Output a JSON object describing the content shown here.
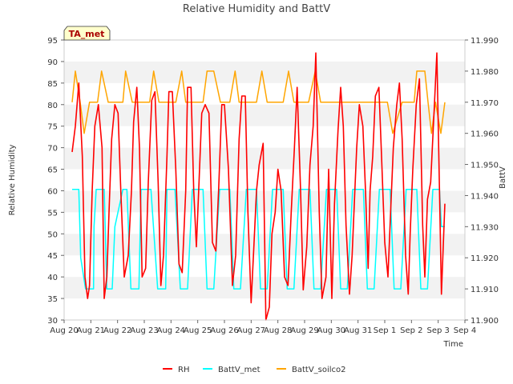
{
  "chart_data": {
    "type": "line",
    "title": "Relative Humidity and BattV",
    "xlabel": "Time",
    "ylabel_left": "Relative Humidity",
    "ylabel_right": "BattV",
    "station_label": "TA_met",
    "ylim_left": [
      30,
      95
    ],
    "ylim_right": [
      11.9,
      11.99
    ],
    "xlim": [
      0,
      15
    ],
    "yticks_left": [
      "30",
      "35",
      "40",
      "45",
      "50",
      "55",
      "60",
      "65",
      "70",
      "75",
      "80",
      "85",
      "90",
      "95"
    ],
    "yticks_right": [
      "11.900",
      "11.910",
      "11.920",
      "11.930",
      "11.940",
      "11.950",
      "11.960",
      "11.970",
      "11.980",
      "11.990"
    ],
    "xticks": [
      "Aug 20",
      "Aug 21",
      "Aug 22",
      "Aug 23",
      "Aug 24",
      "Aug 25",
      "Aug 26",
      "Aug 27",
      "Aug 28",
      "Aug 29",
      "Aug 30",
      "Aug 31",
      "Sep 1",
      "Sep 2",
      "Sep 3",
      "Sep 4"
    ],
    "grid": "horizontal bands",
    "legend_position": "bottom",
    "colors": {
      "RH": "#ff0000",
      "BattV_met": "#00ffff",
      "BattV_soilco2": "#ffa500",
      "band": "#f2f2f2"
    },
    "series": [
      {
        "name": "RH",
        "axis": "left",
        "x": [
          0.3,
          0.42,
          0.55,
          0.68,
          0.78,
          0.88,
          0.95,
          1.05,
          1.15,
          1.28,
          1.42,
          1.5,
          1.6,
          1.68,
          1.78,
          1.9,
          2.02,
          2.12,
          2.25,
          2.4,
          2.52,
          2.6,
          2.72,
          2.82,
          2.92,
          3.05,
          3.15,
          3.28,
          3.4,
          3.52,
          3.62,
          3.72,
          3.85,
          3.92,
          4.05,
          4.18,
          4.3,
          4.42,
          4.55,
          4.62,
          4.75,
          4.85,
          4.95,
          5.05,
          5.15,
          5.28,
          5.42,
          5.55,
          5.68,
          5.78,
          5.9,
          6.0,
          6.15,
          6.3,
          6.42,
          6.55,
          6.65,
          6.78,
          6.88,
          7.0,
          7.1,
          7.2,
          7.3,
          7.45,
          7.55,
          7.68,
          7.78,
          7.9,
          8.0,
          8.12,
          8.25,
          8.38,
          8.5,
          8.62,
          8.72,
          8.85,
          8.95,
          9.08,
          9.2,
          9.32,
          9.42,
          9.55,
          9.65,
          9.8,
          9.9,
          10.02,
          10.12,
          10.25,
          10.35,
          10.45,
          10.55,
          10.68,
          10.78,
          10.88,
          10.95,
          11.05,
          11.18,
          11.28,
          11.38,
          11.45,
          11.55,
          11.65,
          11.78,
          11.88,
          12.0,
          12.12,
          12.22,
          12.32,
          12.45,
          12.55,
          12.65,
          12.78,
          12.88,
          12.95,
          13.05,
          13.18,
          13.3,
          13.42,
          13.5,
          13.6,
          13.72,
          13.85,
          13.95,
          14.05,
          14.12,
          14.25
        ],
        "y": [
          69,
          75,
          85,
          68,
          40,
          35,
          38,
          60,
          75,
          80,
          70,
          35,
          40,
          55,
          72,
          80,
          78,
          60,
          40,
          45,
          60,
          76,
          84,
          70,
          40,
          42,
          62,
          81,
          83,
          62,
          38,
          45,
          68,
          83,
          83,
          65,
          43,
          41,
          60,
          84,
          84,
          60,
          47,
          62,
          78,
          80,
          78,
          48,
          46,
          60,
          80,
          80,
          65,
          38,
          45,
          72,
          82,
          82,
          55,
          34,
          47,
          60,
          66,
          71,
          30,
          33,
          50,
          55,
          65,
          60,
          40,
          38,
          55,
          70,
          84,
          60,
          37,
          47,
          66,
          75,
          92,
          55,
          35,
          40,
          65,
          35,
          57,
          74,
          84,
          75,
          52,
          36,
          45,
          60,
          70,
          80,
          75,
          60,
          42,
          60,
          68,
          82,
          84,
          68,
          48,
          40,
          55,
          70,
          80,
          85,
          72,
          45,
          36,
          50,
          65,
          80,
          86,
          52,
          40,
          58,
          62,
          79,
          92,
          60,
          36,
          57
        ]
      },
      {
        "name": "BattV_met",
        "axis": "right",
        "x": [
          0.3,
          0.55,
          0.62,
          0.8,
          0.88,
          1.1,
          1.12,
          1.2,
          1.5,
          1.6,
          1.8,
          1.9,
          2.2,
          2.35,
          2.5,
          2.6,
          2.8,
          2.88,
          3.25,
          3.5,
          3.6,
          3.8,
          3.85,
          4.15,
          4.35,
          4.5,
          4.62,
          4.8,
          4.88,
          5.2,
          5.35,
          5.5,
          5.6,
          5.82,
          5.9,
          6.2,
          6.35,
          6.5,
          6.6,
          6.82,
          6.9,
          7.2,
          7.35,
          7.5,
          7.6,
          7.8,
          7.88,
          8.2,
          8.35,
          8.5,
          8.6,
          8.8,
          8.88,
          9.2,
          9.35,
          9.5,
          9.6,
          9.82,
          9.9,
          10.2,
          10.35,
          10.5,
          10.6,
          10.8,
          10.88,
          11.2,
          11.35,
          11.5,
          11.6,
          11.8,
          11.88,
          12.2,
          12.35,
          12.5,
          12.6,
          12.8,
          12.88,
          13.2,
          13.35,
          13.5,
          13.6,
          13.8,
          13.88,
          14.05,
          14.12,
          14.25
        ],
        "y": [
          11.942,
          11.942,
          11.92,
          11.91,
          11.91,
          11.91,
          11.93,
          11.942,
          11.942,
          11.91,
          11.91,
          11.93,
          11.942,
          11.942,
          11.91,
          11.91,
          11.91,
          11.942,
          11.942,
          11.91,
          11.91,
          11.91,
          11.942,
          11.942,
          11.91,
          11.91,
          11.91,
          11.942,
          11.942,
          11.942,
          11.91,
          11.91,
          11.91,
          11.942,
          11.942,
          11.942,
          11.91,
          11.91,
          11.91,
          11.942,
          11.942,
          11.942,
          11.91,
          11.91,
          11.91,
          11.942,
          11.942,
          11.942,
          11.91,
          11.91,
          11.91,
          11.942,
          11.942,
          11.942,
          11.91,
          11.91,
          11.91,
          11.942,
          11.942,
          11.942,
          11.91,
          11.91,
          11.91,
          11.942,
          11.942,
          11.942,
          11.91,
          11.91,
          11.91,
          11.942,
          11.942,
          11.942,
          11.91,
          11.91,
          11.91,
          11.942,
          11.942,
          11.942,
          11.91,
          11.91,
          11.91,
          11.942,
          11.942,
          11.942,
          11.93,
          11.93
        ]
      },
      {
        "name": "BattV_soilco2",
        "axis": "right",
        "x": [
          0.3,
          0.42,
          0.6,
          0.75,
          0.95,
          1.25,
          1.4,
          1.65,
          1.88,
          2.2,
          2.3,
          2.55,
          2.85,
          3.2,
          3.35,
          3.55,
          3.85,
          4.18,
          4.4,
          4.55,
          4.85,
          5.2,
          5.35,
          5.6,
          5.85,
          6.2,
          6.4,
          6.55,
          6.85,
          7.2,
          7.4,
          7.6,
          7.85,
          8.2,
          8.4,
          8.6,
          8.85,
          9.15,
          9.4,
          9.6,
          9.85,
          10.2,
          10.4,
          10.6,
          10.85,
          11.2,
          11.4,
          11.6,
          11.85,
          12.1,
          12.3,
          12.65,
          12.85,
          13.1,
          13.2,
          13.5,
          13.62,
          13.75,
          13.9,
          14.1,
          14.25
        ],
        "y": [
          11.97,
          11.98,
          11.97,
          11.96,
          11.97,
          11.97,
          11.98,
          11.97,
          11.97,
          11.97,
          11.98,
          11.97,
          11.97,
          11.97,
          11.98,
          11.97,
          11.97,
          11.97,
          11.98,
          11.97,
          11.97,
          11.97,
          11.98,
          11.98,
          11.97,
          11.97,
          11.98,
          11.97,
          11.97,
          11.97,
          11.98,
          11.97,
          11.97,
          11.97,
          11.98,
          11.97,
          11.97,
          11.97,
          11.98,
          11.97,
          11.97,
          11.97,
          11.97,
          11.97,
          11.97,
          11.97,
          11.97,
          11.97,
          11.97,
          11.97,
          11.96,
          11.97,
          11.97,
          11.97,
          11.98,
          11.98,
          11.97,
          11.96,
          11.97,
          11.96,
          11.97
        ]
      }
    ]
  }
}
